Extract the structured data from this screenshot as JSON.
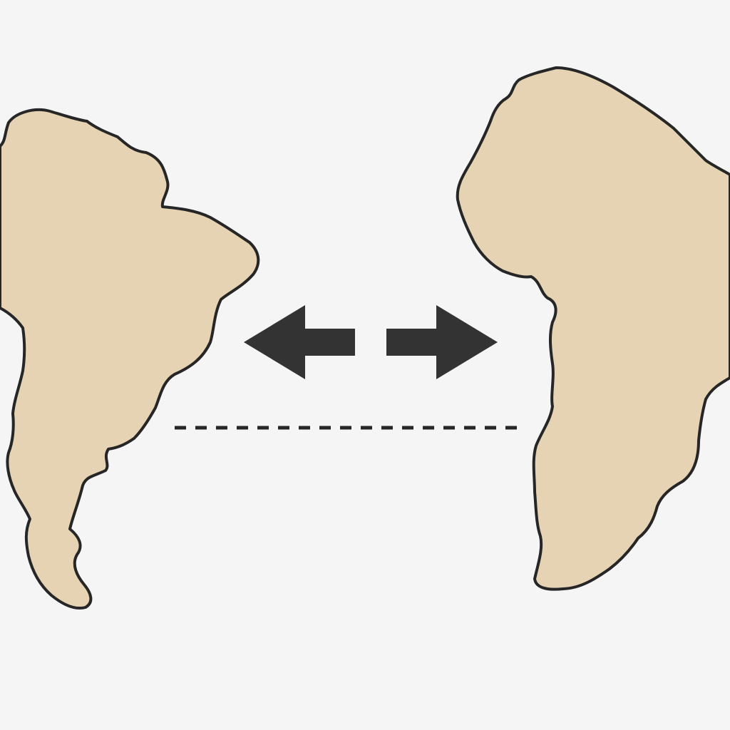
{
  "colors": {
    "background": "#f5f5f5",
    "landmass_fill": "#e5d3b3",
    "outline": "#262626",
    "arrow": "#333333",
    "dashed_line": "#262626"
  },
  "icons": {
    "left_arrow": "arrow-left-icon",
    "right_arrow": "arrow-right-icon"
  }
}
